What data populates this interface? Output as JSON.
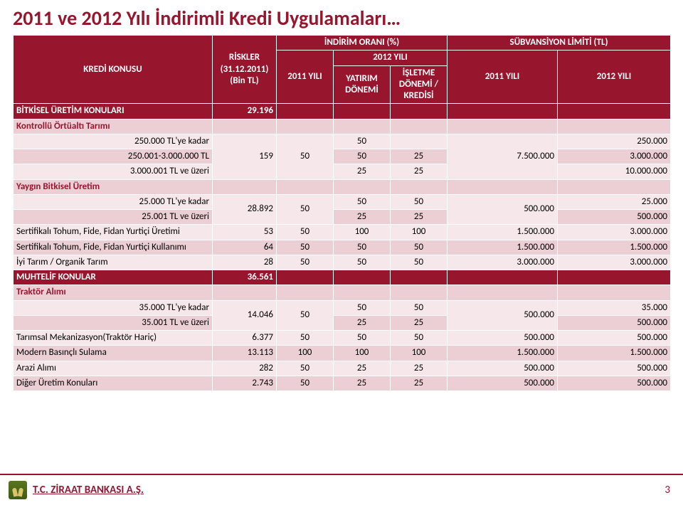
{
  "title": "2011 ve 2012 Yılı İndirimli Kredi Uygulamaları…",
  "headers": {
    "kredi_konusu": "KREDİ KONUSU",
    "riskler": "RİSKLER (31.12.2011) (Bin TL)",
    "indirim_orani": "İNDİRİM ORANI (%)",
    "y2011": "2011 YILI",
    "y2012": "2012 YILI",
    "yatirim": "YATIRIM DÖNEMİ",
    "isletme": "İŞLETME DÖNEMİ / KREDİSİ",
    "subvansiyon": "SÜBVANSİYON LİMİTİ (TL)",
    "sub_y2011": "2011 YILI",
    "sub_y2012": "2012 YILI"
  },
  "colors": {
    "brand_dark": "#97162e",
    "row_light": "#f5e7ea",
    "row_med": "#eccfd5",
    "text_white": "#ffffff",
    "page_bg": "#ffffff"
  },
  "sections": {
    "bitkisel": {
      "label": "BİTKİSEL ÜRETİM KONULARI",
      "risk": "29.196"
    },
    "kontrollu": {
      "label": "Kontrollü Örtüaltı Tarımı",
      "r1": {
        "label": "250.000 TL'ye kadar",
        "y11": "",
        "c1": "50",
        "c2": "50",
        "c3": "",
        "s11": "",
        "s12": "250.000"
      },
      "r2": {
        "label": "250.001-3.000.000 TL",
        "y11": "159",
        "c1": "50",
        "c2": "50",
        "c3": "25",
        "s11": "7.500.000",
        "s12": "3.000.000"
      },
      "r3": {
        "label": "3.000.001 TL ve üzeri",
        "y11": "",
        "c1": "",
        "c2": "25",
        "c3": "25",
        "s11": "",
        "s12": "10.000.000"
      }
    },
    "yaygin": {
      "label": "Yaygın Bitkisel Üretim",
      "r1": {
        "label": "25.000 TL'ye kadar",
        "y11": "28.892",
        "c1_rowspan": "50",
        "c2": "50",
        "c3": "50",
        "s11_rowspan": "500.000",
        "s12": "25.000"
      },
      "r2": {
        "label": "25.001 TL ve üzeri",
        "c2": "25",
        "c3": "25",
        "s12": "500.000"
      }
    },
    "sert_uretim": {
      "label": "Sertifikalı Tohum, Fide, Fidan Yurtiçi Üretimi",
      "risk": "53",
      "c1": "50",
      "c2": "100",
      "c3": "100",
      "s11": "1.500.000",
      "s12": "3.000.000"
    },
    "sert_kullanim": {
      "label": "Sertifikalı Tohum, Fide, Fidan Yurtiçi Kullanımı",
      "risk": "64",
      "c1": "50",
      "c2": "50",
      "c3": "50",
      "s11": "1.500.000",
      "s12": "1.500.000"
    },
    "organik": {
      "label": "İyi Tarım / Organik Tarım",
      "risk": "28",
      "c1": "50",
      "c2": "50",
      "c3": "50",
      "s11": "3.000.000",
      "s12": "3.000.000"
    },
    "muhtelif": {
      "label": "MUHTELİF KONULAR",
      "risk": "36.561"
    },
    "traktor": {
      "label": "Traktör Alımı",
      "r1": {
        "label": "35.000 TL'ye kadar",
        "y11": "14.046",
        "c1_rowspan": "50",
        "c2": "50",
        "c3": "50",
        "s11_rowspan": "500.000",
        "s12": "35.000"
      },
      "r2": {
        "label": "35.001 TL ve üzeri",
        "c2": "25",
        "c3": "25",
        "s12": "500.000"
      }
    },
    "mekanizasyon": {
      "label": "Tarımsal Mekanizasyon(Traktör Hariç)",
      "risk": "6.377",
      "c1": "50",
      "c2": "50",
      "c3": "50",
      "s11": "500.000",
      "s12": "500.000"
    },
    "sulama": {
      "label": "Modern Basınçlı Sulama",
      "risk": "13.113",
      "c1": "100",
      "c2": "100",
      "c3": "100",
      "s11": "1.500.000",
      "s12": "1.500.000"
    },
    "arazi": {
      "label": "Arazi Alımı",
      "risk": "282",
      "c1": "50",
      "c2": "25",
      "c3": "25",
      "s11": "500.000",
      "s12": "500.000"
    },
    "diger": {
      "label": "Diğer Üretim Konuları",
      "risk": "2.743",
      "c1": "50",
      "c2": "25",
      "c3": "25",
      "s11": "500.000",
      "s12": "500.000"
    }
  },
  "footer": {
    "bank": "T.C. ZİRAAT BANKASI A.Ş.",
    "page": "3"
  }
}
